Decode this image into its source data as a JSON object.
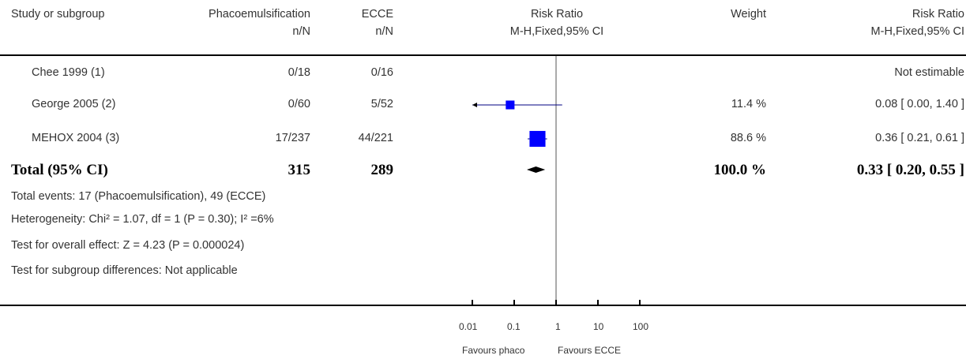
{
  "header": {
    "col_study": "Study or subgroup",
    "col_exp": "Phacoemulsification",
    "col_exp_sub": "n/N",
    "col_ctl": "ECCE",
    "col_ctl_sub": "n/N",
    "col_plot": "Risk Ratio",
    "col_plot_sub": "M-H,Fixed,95% CI",
    "col_weight": "Weight",
    "col_rr": "Risk Ratio",
    "col_rr_sub": "M-H,Fixed,95% CI"
  },
  "rows": [
    {
      "study": "Chee 1999 (1)",
      "exp": "0/18",
      "ctl": "0/16",
      "weight": "",
      "rr": "Not estimable"
    },
    {
      "study": "George 2005 (2)",
      "exp": "0/60",
      "ctl": "5/52",
      "weight": "11.4 %",
      "rr": "0.08 [ 0.00, 1.40 ]"
    },
    {
      "study": "MEHOX 2004 (3)",
      "exp": "17/237",
      "ctl": "44/221",
      "weight": "88.6 %",
      "rr": "0.36 [ 0.21, 0.61 ]"
    }
  ],
  "total": {
    "label": "Total (95% CI)",
    "exp": "315",
    "ctl": "289",
    "weight": "100.0 %",
    "rr": "0.33 [ 0.20, 0.55 ]"
  },
  "notes": [
    "Total events: 17 (Phacoemulsification), 49 (ECCE)",
    "Heterogeneity: Chi² = 1.07, df = 1 (P = 0.30); I² =6%",
    "Test for overall effect: Z = 4.23 (P = 0.000024)",
    "Test for subgroup differences: Not applicable"
  ],
  "axis": {
    "ticks": [
      "0.01",
      "0.1",
      "1",
      "10",
      "100"
    ],
    "favours_left": "Favours phaco",
    "favours_right": "Favours ECCE"
  },
  "chart_data": {
    "type": "forest",
    "scale": "log",
    "xlim": [
      0.01,
      100
    ],
    "reference_line": 1,
    "xticks": [
      0.01,
      0.1,
      1,
      10,
      100
    ],
    "studies": [
      {
        "name": "George 2005 (2)",
        "estimate": 0.08,
        "lower": 0.0,
        "upper": 1.4,
        "weight": 11.4,
        "lower_arrow": true
      },
      {
        "name": "MEHOX 2004 (3)",
        "estimate": 0.36,
        "lower": 0.21,
        "upper": 0.61,
        "weight": 88.6
      }
    ],
    "pooled": {
      "estimate": 0.33,
      "lower": 0.2,
      "upper": 0.55
    },
    "colors": {
      "study": "#0000ff",
      "pooled": "#000000",
      "axis": "#000000",
      "ref": "#555555"
    }
  }
}
